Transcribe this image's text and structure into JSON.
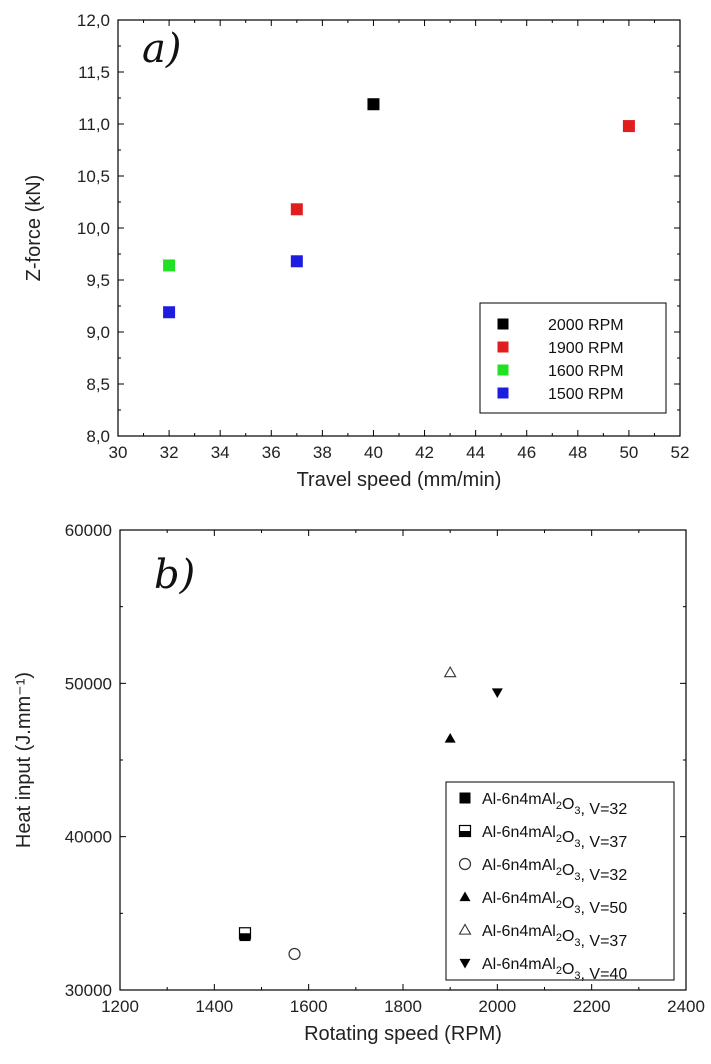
{
  "chart_data": [
    {
      "type": "scatter",
      "panel_label": "a)",
      "xlabel": "Travel speed (mm/min)",
      "ylabel": "Z-force (kN)",
      "xlim": [
        30,
        52
      ],
      "ylim": [
        8.0,
        12.0
      ],
      "xticks": [
        "30",
        "32",
        "34",
        "36",
        "38",
        "40",
        "42",
        "44",
        "46",
        "48",
        "50",
        "52"
      ],
      "yticks": [
        "8,0",
        "8,5",
        "9,0",
        "9,5",
        "10,0",
        "10,5",
        "11,0",
        "11,5",
        "12,0"
      ],
      "legend_position": "bottom-right",
      "series": [
        {
          "name": "2000 RPM",
          "color": "#000000",
          "marker": "square",
          "points": [
            {
              "x": 40,
              "y": 11.19
            }
          ]
        },
        {
          "name": "1900 RPM",
          "color": "#e11d1d",
          "marker": "square",
          "points": [
            {
              "x": 37,
              "y": 10.18
            },
            {
              "x": 50,
              "y": 10.98
            }
          ]
        },
        {
          "name": "1600 RPM",
          "color": "#22e022",
          "marker": "square",
          "points": [
            {
              "x": 32,
              "y": 9.64
            }
          ]
        },
        {
          "name": "1500 RPM",
          "color": "#1d1de1",
          "marker": "square",
          "points": [
            {
              "x": 32,
              "y": 9.19
            },
            {
              "x": 37,
              "y": 9.68
            }
          ]
        }
      ]
    },
    {
      "type": "scatter",
      "panel_label": "b)",
      "xlabel": "Rotating speed (RPM)",
      "ylabel": "Heat input (J.mm⁻¹)",
      "xlim": [
        1200,
        2400
      ],
      "ylim": [
        30000,
        60000
      ],
      "xticks": [
        "1200",
        "1400",
        "1600",
        "1800",
        "2000",
        "2200",
        "2400"
      ],
      "yticks": [
        "30000",
        "40000",
        "50000",
        "60000"
      ],
      "legend_position": "bottom-right",
      "series": [
        {
          "name": "Al-6n4mAl₂O₃, V=32",
          "marker": "square-filled",
          "points": [
            {
              "x": 1465,
              "y": 33550
            }
          ]
        },
        {
          "name": "Al-6n4mAl₂O₃, V=37",
          "marker": "square-half",
          "points": [
            {
              "x": 1465,
              "y": 33700
            }
          ]
        },
        {
          "name": "Al-6n4mAl₂O₃, V=32",
          "marker": "circle-open",
          "points": [
            {
              "x": 1570,
              "y": 32350
            }
          ]
        },
        {
          "name": "Al-6n4mAl₂O₃, V=50",
          "marker": "triangle-up-filled",
          "points": [
            {
              "x": 1900,
              "y": 46400
            }
          ]
        },
        {
          "name": "Al-6n4mAl₂O₃, V=37",
          "marker": "triangle-up-open",
          "points": [
            {
              "x": 1900,
              "y": 50700
            }
          ]
        },
        {
          "name": "Al-6n4mAl₂O₃, V=40",
          "marker": "triangle-down-filled",
          "points": [
            {
              "x": 2000,
              "y": 49400
            }
          ]
        }
      ]
    }
  ]
}
